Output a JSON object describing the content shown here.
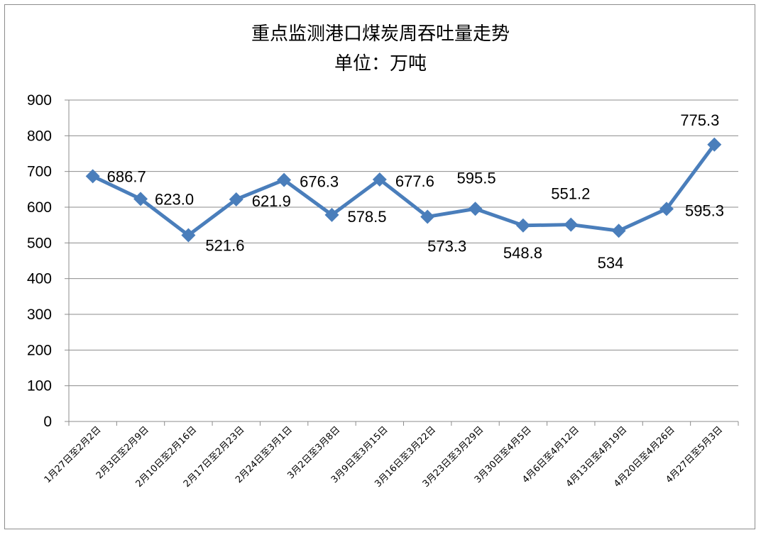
{
  "chart_data": {
    "type": "line",
    "title": "重点监测港口煤炭周吞吐量走势",
    "subtitle": "单位：万吨",
    "ylim": [
      0,
      900
    ],
    "yticks": [
      0,
      100,
      200,
      300,
      400,
      500,
      600,
      700,
      800,
      900
    ],
    "grid": true,
    "legend": "none",
    "categories": [
      "1月27日至2月2日",
      "2月3日至2月9日",
      "2月10日至2月16日",
      "2月17日至2月23日",
      "2月24日至3月1日",
      "3月2日至3月8日",
      "3月9日至3月15日",
      "3月16日至3月22日",
      "3月23日至3月29日",
      "3月30日至4月5日",
      "4月6日至4月12日",
      "4月13日至4月19日",
      "4月20日至4月26日",
      "4月27日至5月3日"
    ],
    "series": [
      {
        "color": "#4a7ebb",
        "values": [
          686.7,
          623.0,
          521.6,
          621.9,
          676.3,
          578.5,
          677.6,
          573.3,
          595.5,
          548.8,
          551.2,
          534,
          595.3,
          775.3
        ],
        "labels": [
          "686.7",
          "623.0",
          "521.6",
          "621.9",
          "676.3",
          "578.5",
          "677.6",
          "573.3",
          "595.5",
          "548.8",
          "551.2",
          "534",
          "595.3",
          "775.3"
        ]
      }
    ]
  }
}
